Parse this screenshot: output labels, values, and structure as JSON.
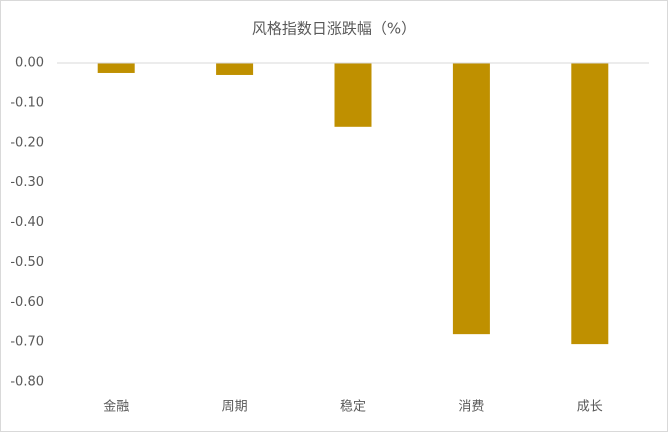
{
  "chart_data": {
    "type": "bar",
    "title": "风格指数日涨跌幅（%）",
    "categories": [
      "金融",
      "周期",
      "稳定",
      "消费",
      "成长"
    ],
    "values": [
      -0.025,
      -0.03,
      -0.16,
      -0.68,
      -0.705
    ],
    "color": "#bf9000",
    "ylim": [
      -0.8,
      0
    ],
    "yticks": [
      {
        "value": 0,
        "label": "0.00"
      },
      {
        "value": -0.1,
        "label": "-0.10"
      },
      {
        "value": -0.2,
        "label": "-0.20"
      },
      {
        "value": -0.3,
        "label": "-0.30"
      },
      {
        "value": -0.4,
        "label": "-0.40"
      },
      {
        "value": -0.5,
        "label": "-0.50"
      },
      {
        "value": -0.6,
        "label": "-0.60"
      },
      {
        "value": -0.7,
        "label": "-0.70"
      },
      {
        "value": -0.8,
        "label": "-0.80"
      }
    ],
    "grid": false
  }
}
